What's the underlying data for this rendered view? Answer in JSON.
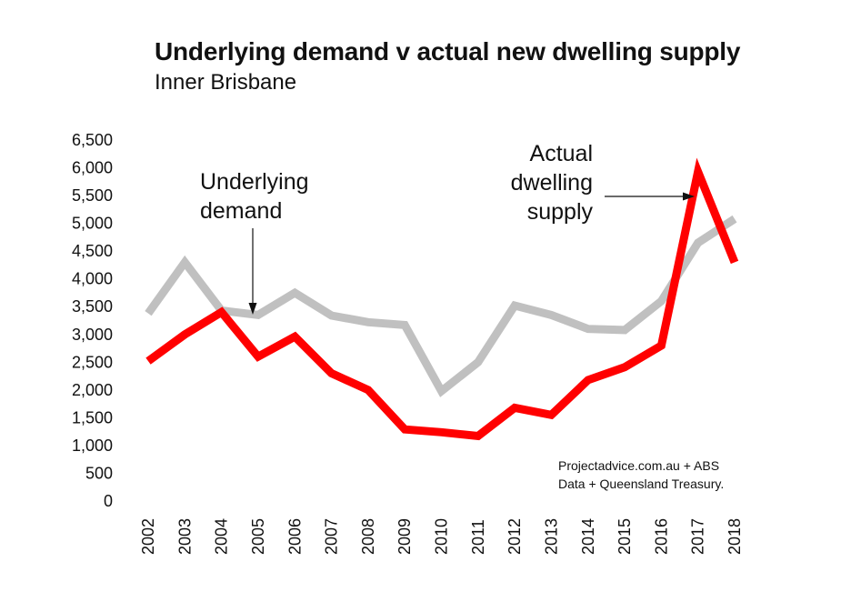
{
  "chart_data": {
    "type": "line",
    "title": "Underlying demand v actual new dwelling supply",
    "subtitle": "Inner Brisbane",
    "xlabel": "",
    "ylabel": "",
    "categories": [
      "2002",
      "2003",
      "2004",
      "2005",
      "2006",
      "2007",
      "2008",
      "2009",
      "2010",
      "2011",
      "2012",
      "2013",
      "2014",
      "2015",
      "2016",
      "2017",
      "2018"
    ],
    "y_ticks": [
      "0",
      "500",
      "1,000",
      "1,500",
      "2,000",
      "2,500",
      "3,000",
      "3,500",
      "4,000",
      "4,500",
      "5,000",
      "5,500",
      "6,000",
      "6,500"
    ],
    "ylim": [
      0,
      6500
    ],
    "grid": false,
    "series": [
      {
        "name": "Underlying demand",
        "color": "#c0c0c0",
        "values": [
          3380,
          4300,
          3430,
          3350,
          3750,
          3340,
          3220,
          3170,
          1980,
          2500,
          3520,
          3350,
          3100,
          3080,
          3600,
          4650,
          5080
        ]
      },
      {
        "name": "Actual dwelling supply",
        "color": "#ff0000",
        "values": [
          2520,
          3000,
          3400,
          2600,
          2960,
          2300,
          2000,
          1290,
          1240,
          1170,
          1680,
          1550,
          2180,
          2410,
          2800,
          5930,
          4300
        ]
      }
    ],
    "annotations": {
      "demand_label_lines": [
        "Underlying",
        "demand"
      ],
      "supply_label_lines": [
        "Actual",
        "dwelling",
        "supply"
      ],
      "source_lines": [
        "Projectadvice.com.au + ABS",
        "Data + Queensland Treasury."
      ]
    }
  }
}
